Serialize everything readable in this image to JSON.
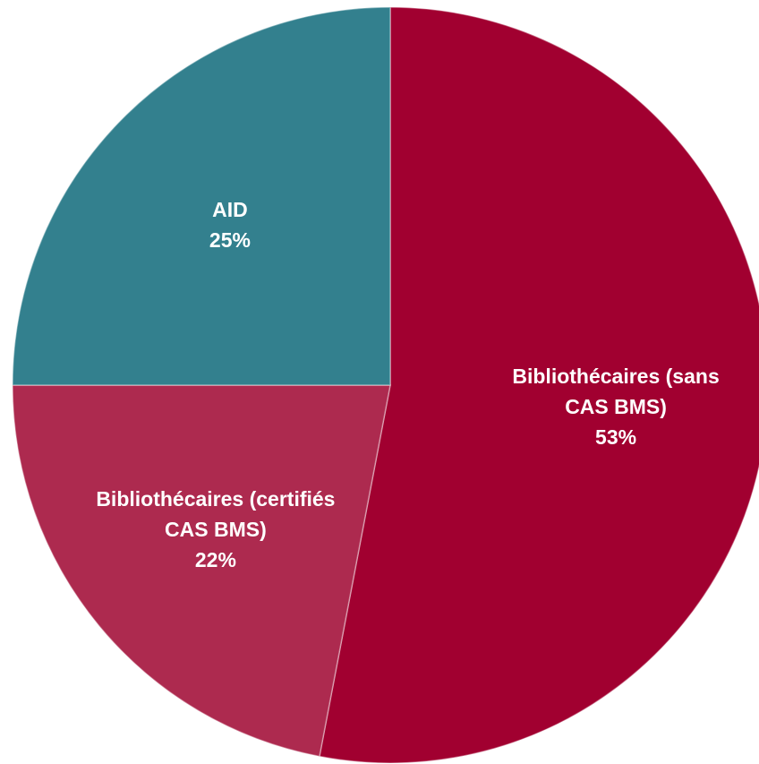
{
  "chart_data": {
    "type": "pie",
    "categories": [
      "Bibliothécaires (sans CAS BMS)",
      "Bibliothécaires (certifiés CAS BMS)",
      "AID"
    ],
    "values": [
      53,
      22,
      25
    ],
    "value_labels": [
      "53%",
      "22%",
      "25%"
    ],
    "colors": [
      "#a10030",
      "#ad2a4f",
      "#33808e"
    ]
  }
}
